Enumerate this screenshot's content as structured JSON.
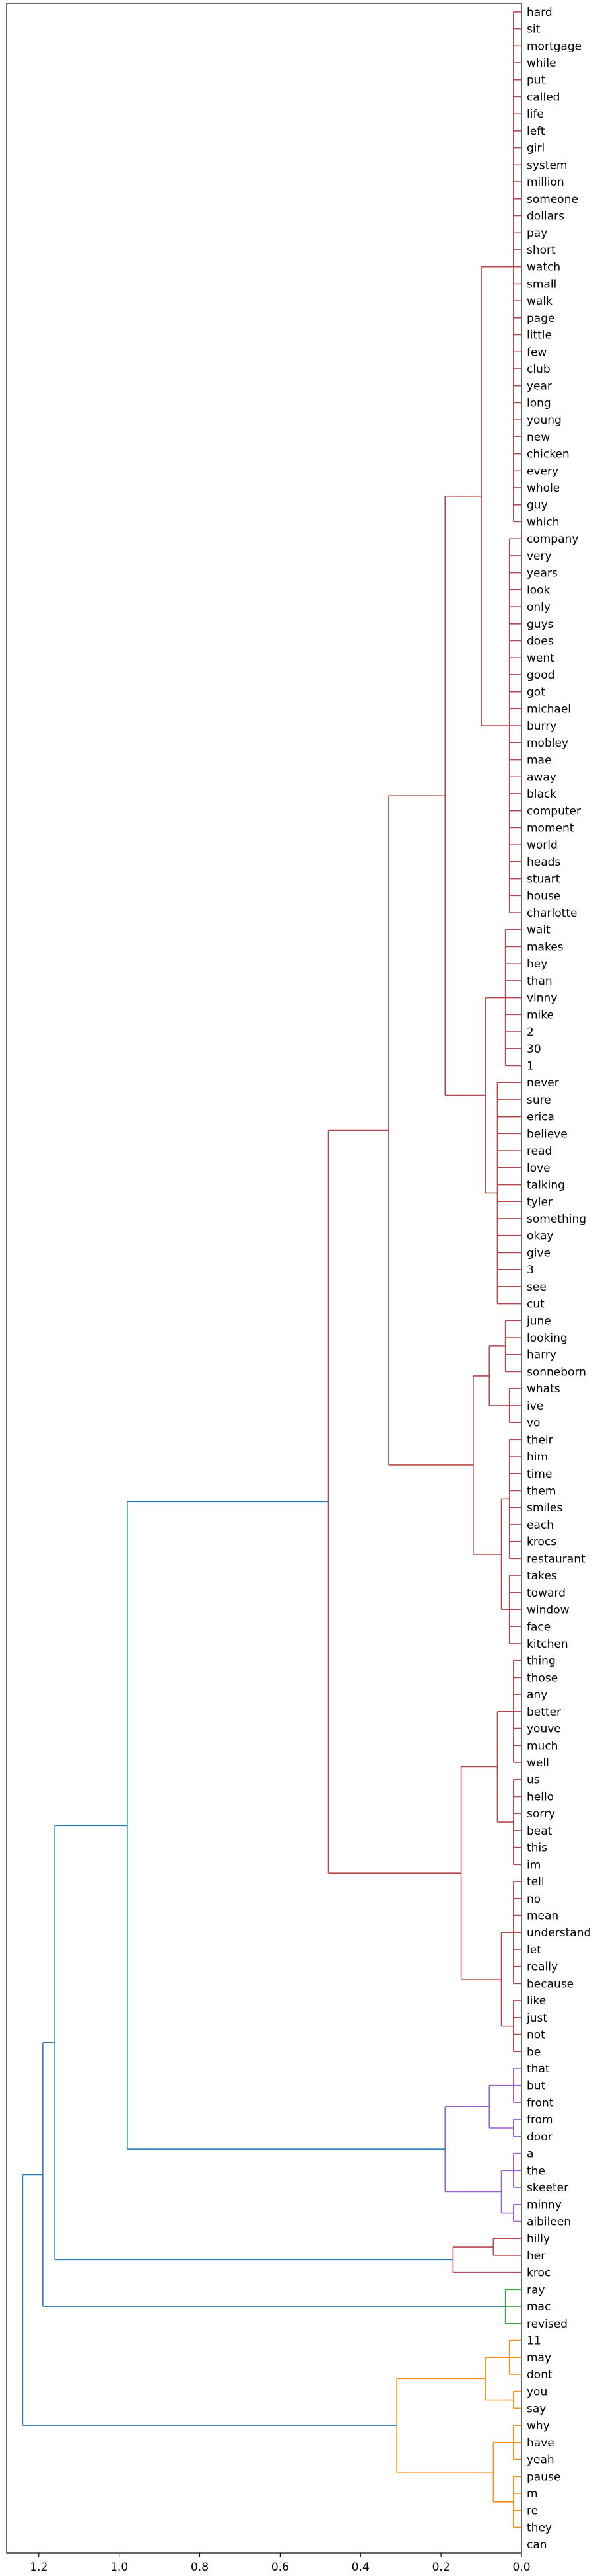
{
  "chart_data": {
    "type": "dendrogram",
    "orientation": "left",
    "title": "",
    "xlabel": "",
    "ylabel": "",
    "xlim": [
      1.28,
      0.0
    ],
    "xticks": [
      1.2,
      1.0,
      0.8,
      0.6,
      0.4,
      0.2,
      0.0
    ],
    "xtick_labels": [
      "1.2",
      "1.0",
      "0.8",
      "0.6",
      "0.4",
      "0.2",
      "0.0"
    ],
    "colors": {
      "red": "#b5494a",
      "purple": "#9b5fcf",
      "green": "#3aa53a",
      "orange": "#ff8c1a",
      "blue": "#2a7db8",
      "frame": "#000000"
    },
    "leaves": [
      "hard",
      "sit",
      "mortgage",
      "while",
      "put",
      "called",
      "life",
      "left",
      "girl",
      "system",
      "million",
      "someone",
      "dollars",
      "pay",
      "short",
      "watch",
      "small",
      "walk",
      "page",
      "little",
      "few",
      "club",
      "year",
      "long",
      "young",
      "new",
      "chicken",
      "every",
      "whole",
      "guy",
      "which",
      "company",
      "very",
      "years",
      "look",
      "only",
      "guys",
      "does",
      "went",
      "good",
      "got",
      "michael",
      "burry",
      "mobley",
      "mae",
      "away",
      "black",
      "computer",
      "moment",
      "world",
      "heads",
      "stuart",
      "house",
      "charlotte",
      "wait",
      "makes",
      "hey",
      "than",
      "vinny",
      "mike",
      "2",
      "30",
      "1",
      "never",
      "sure",
      "erica",
      "believe",
      "read",
      "love",
      "talking",
      "tyler",
      "something",
      "okay",
      "give",
      "3",
      "see",
      "cut",
      "june",
      "looking",
      "harry",
      "sonneborn",
      "whats",
      "ive",
      "vo",
      "their",
      "him",
      "time",
      "them",
      "smiles",
      "each",
      "krocs",
      "restaurant",
      "takes",
      "toward",
      "window",
      "face",
      "kitchen",
      "thing",
      "those",
      "any",
      "better",
      "youve",
      "much",
      "well",
      "us",
      "hello",
      "sorry",
      "beat",
      "this",
      "im",
      "tell",
      "no",
      "mean",
      "understand",
      "let",
      "really",
      "because",
      "like",
      "just",
      "not",
      "be",
      "that",
      "but",
      "front",
      "from",
      "door",
      "a",
      "the",
      "skeeter",
      "minny",
      "aibileen",
      "hilly",
      "her",
      "kroc",
      "ray",
      "mac",
      "revised",
      "11",
      "may",
      "dont",
      "you",
      "say",
      "why",
      "have",
      "yeah",
      "pause",
      "m",
      "re",
      "they",
      "can"
    ],
    "tree": {
      "h": 1.24,
      "c": "blue",
      "ch": [
        {
          "h": 1.19,
          "c": "blue",
          "ch": [
            {
              "h": 1.16,
              "c": "blue",
              "ch": [
                {
                  "h": 0.98,
                  "c": "blue",
                  "ch": [
                    {
                      "h": 0.48,
                      "c": "red",
                      "ch": [
                        {
                          "h": 0.33,
                          "c": "red",
                          "ch": [
                            {
                              "h": 0.19,
                              "c": "red",
                              "ch": [
                                {
                                  "h": 0.1,
                                  "c": "red",
                                  "ch": [
                                    {
                                      "h": 0.02,
                                      "c": "red",
                                      "ch": [
                                        0,
                                        1,
                                        2,
                                        3,
                                        4,
                                        5,
                                        6,
                                        7,
                                        8,
                                        9,
                                        10,
                                        11,
                                        12,
                                        13,
                                        14,
                                        15,
                                        16,
                                        17,
                                        18,
                                        19,
                                        20,
                                        21,
                                        22,
                                        23,
                                        24,
                                        25,
                                        26,
                                        27,
                                        28,
                                        29,
                                        30
                                      ]
                                    },
                                    {
                                      "h": 0.03,
                                      "c": "red",
                                      "ch": [
                                        31,
                                        32,
                                        33,
                                        34,
                                        35,
                                        36,
                                        37,
                                        38,
                                        39,
                                        40,
                                        41,
                                        42,
                                        43,
                                        44,
                                        45,
                                        46,
                                        47,
                                        48,
                                        49,
                                        50,
                                        51,
                                        52,
                                        53
                                      ]
                                    }
                                  ]
                                },
                                {
                                  "h": 0.09,
                                  "c": "red",
                                  "ch": [
                                    {
                                      "h": 0.04,
                                      "c": "red",
                                      "ch": [
                                        54,
                                        55,
                                        56,
                                        57,
                                        58,
                                        59,
                                        60,
                                        61,
                                        62
                                      ]
                                    },
                                    {
                                      "h": 0.06,
                                      "c": "red",
                                      "ch": [
                                        63,
                                        64,
                                        65,
                                        66,
                                        67,
                                        68,
                                        69,
                                        70,
                                        71,
                                        72,
                                        73,
                                        74,
                                        75,
                                        76
                                      ]
                                    }
                                  ]
                                }
                              ]
                            },
                            {
                              "h": 0.12,
                              "c": "red",
                              "ch": [
                                {
                                  "h": 0.08,
                                  "c": "red",
                                  "ch": [
                                    {
                                      "h": 0.04,
                                      "c": "red",
                                      "ch": [
                                        77,
                                        78,
                                        79,
                                        80
                                      ]
                                    },
                                    {
                                      "h": 0.03,
                                      "c": "red",
                                      "ch": [
                                        81,
                                        82,
                                        83
                                      ]
                                    }
                                  ]
                                },
                                {
                                  "h": 0.05,
                                  "c": "red",
                                  "ch": [
                                    {
                                      "h": 0.03,
                                      "c": "red",
                                      "ch": [
                                        84,
                                        85,
                                        86,
                                        87,
                                        88,
                                        89,
                                        90,
                                        91
                                      ]
                                    },
                                    {
                                      "h": 0.03,
                                      "c": "red",
                                      "ch": [
                                        92,
                                        93,
                                        94,
                                        95,
                                        96
                                      ]
                                    }
                                  ]
                                }
                              ]
                            }
                          ]
                        },
                        {
                          "h": 0.15,
                          "c": "red",
                          "ch": [
                            {
                              "h": 0.06,
                              "c": "red",
                              "ch": [
                                {
                                  "h": 0.02,
                                  "c": "red",
                                  "ch": [
                                    97,
                                    98,
                                    99,
                                    100,
                                    101,
                                    102,
                                    103
                                  ]
                                },
                                {
                                  "h": 0.02,
                                  "c": "red",
                                  "ch": [
                                    104,
                                    105,
                                    106,
                                    107,
                                    108,
                                    109
                                  ]
                                }
                              ]
                            },
                            {
                              "h": 0.05,
                              "c": "red",
                              "ch": [
                                {
                                  "h": 0.02,
                                  "c": "red",
                                  "ch": [
                                    110,
                                    111,
                                    112,
                                    113,
                                    114,
                                    115,
                                    116
                                  ]
                                },
                                {
                                  "h": 0.02,
                                  "c": "red",
                                  "ch": [
                                    117,
                                    118,
                                    119,
                                    120
                                  ]
                                }
                              ]
                            }
                          ]
                        }
                      ]
                    },
                    {
                      "h": 0.19,
                      "c": "purple",
                      "ch": [
                        {
                          "h": 0.08,
                          "c": "purple",
                          "ch": [
                            {
                              "h": 0.02,
                              "c": "purple",
                              "ch": [
                                121,
                                122,
                                123
                              ]
                            },
                            {
                              "h": 0.02,
                              "c": "purple",
                              "ch": [
                                124,
                                125
                              ]
                            }
                          ]
                        },
                        {
                          "h": 0.05,
                          "c": "purple",
                          "ch": [
                            {
                              "h": 0.02,
                              "c": "purple",
                              "ch": [
                                126,
                                127,
                                128
                              ]
                            },
                            {
                              "h": 0.02,
                              "c": "purple",
                              "ch": [
                                129,
                                130
                              ]
                            }
                          ]
                        }
                      ]
                    }
                  ]
                },
                {
                  "h": 0.17,
                  "c": "red",
                  "ch": [
                    {
                      "h": 0.07,
                      "c": "red",
                      "ch": [
                        131,
                        132
                      ]
                    },
                    133
                  ]
                }
              ]
            },
            {
              "h": 0.04,
              "c": "green",
              "ch": [
                134,
                135,
                136
              ]
            }
          ]
        },
        {
          "h": 0.31,
          "c": "orange",
          "ch": [
            {
              "h": 0.09,
              "c": "orange",
              "ch": [
                {
                  "h": 0.03,
                  "c": "orange",
                  "ch": [
                    137,
                    138,
                    139
                  ]
                },
                {
                  "h": 0.02,
                  "c": "orange",
                  "ch": [
                    140,
                    141
                  ]
                }
              ]
            },
            {
              "h": 0.07,
              "c": "orange",
              "ch": [
                {
                  "h": 0.02,
                  "c": "orange",
                  "ch": [
                    142,
                    143,
                    144
                  ]
                },
                {
                  "h": 0.02,
                  "c": "orange",
                  "ch": [
                    145,
                    146,
                    147,
                    148
                  ]
                }
              ]
            }
          ]
        }
      ]
    }
  }
}
